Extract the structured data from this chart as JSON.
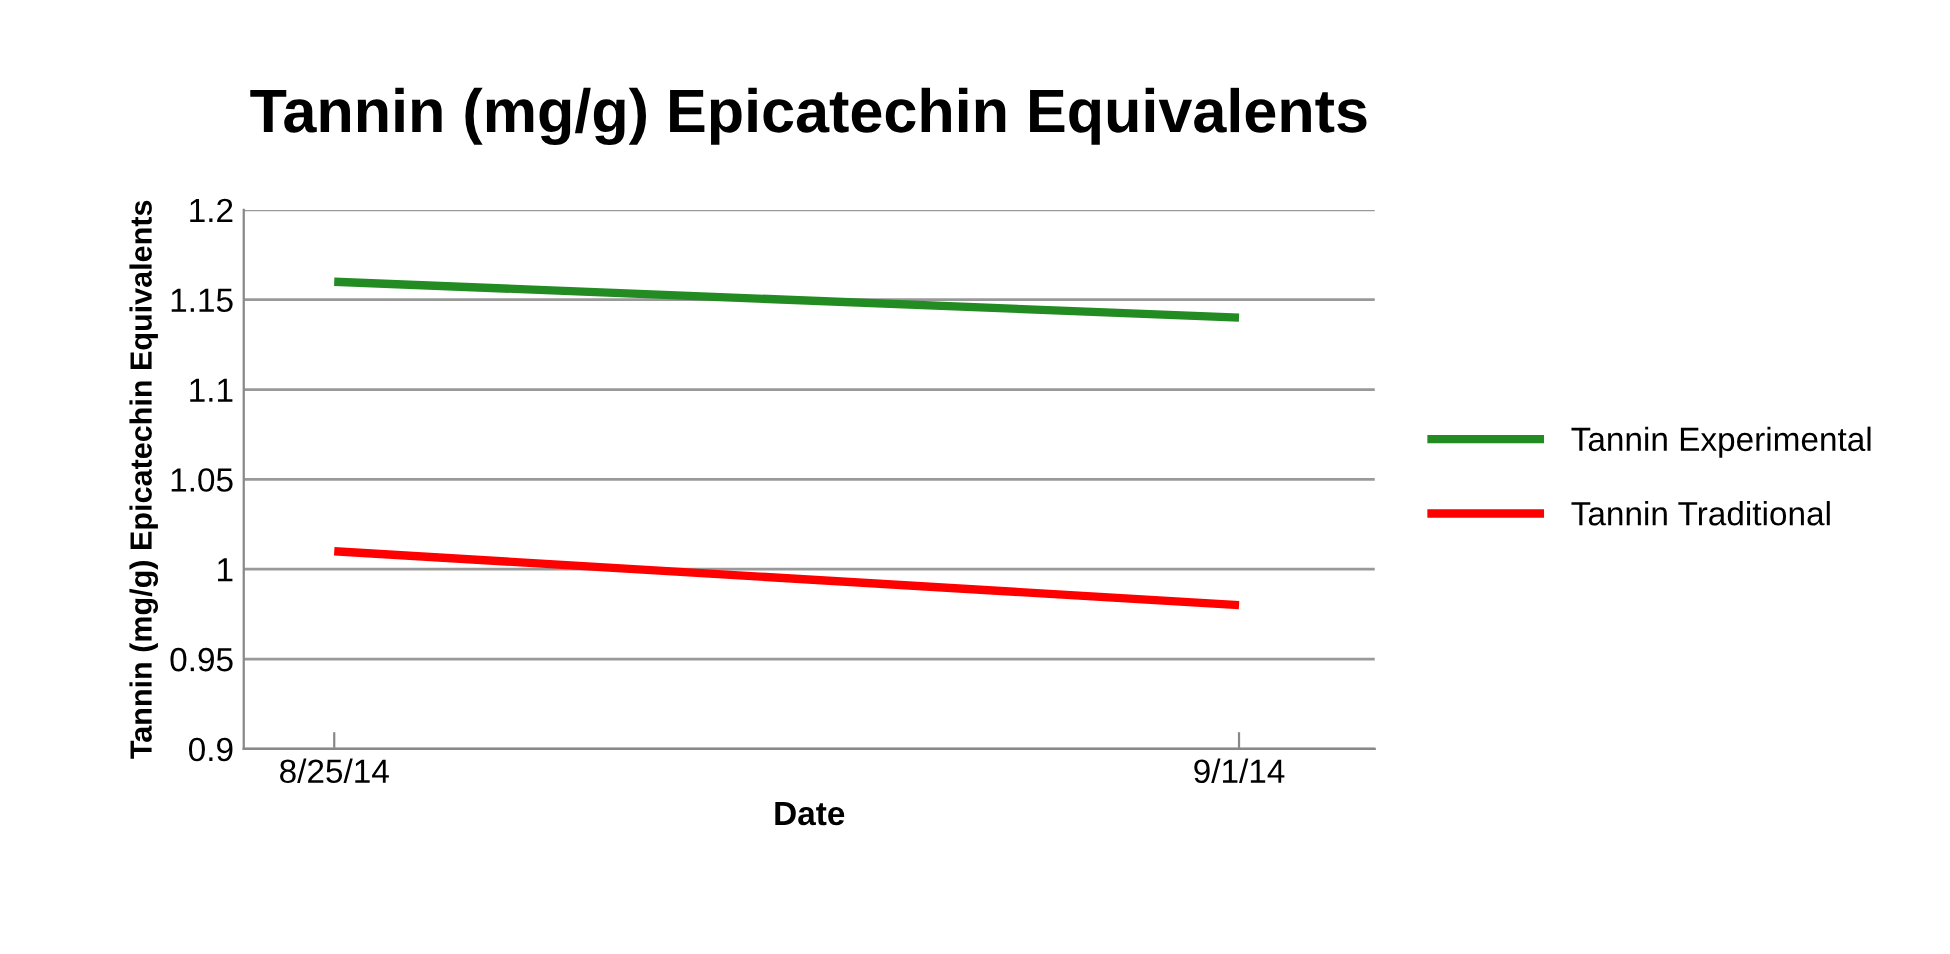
{
  "chart_data": {
    "type": "line",
    "title": "Tannin (mg/g) Epicatechin Equivalents",
    "xlabel": "Date",
    "ylabel": "Tannin (mg/g) Epicatechin Equivalents",
    "categories": [
      "8/25/14",
      "9/1/14"
    ],
    "series": [
      {
        "name": "Tannin Experimental",
        "color": "#228b22",
        "values": [
          1.16,
          1.14
        ]
      },
      {
        "name": "Tannin Traditional",
        "color": "#ff0000",
        "values": [
          1.01,
          0.98
        ]
      }
    ],
    "ylim": [
      0.9,
      1.2
    ],
    "yticks": [
      0.9,
      0.95,
      1,
      1.05,
      1.1,
      1.15,
      1.2
    ],
    "grid": "y",
    "legend": "right",
    "marker": "none",
    "line_style": "solid"
  }
}
